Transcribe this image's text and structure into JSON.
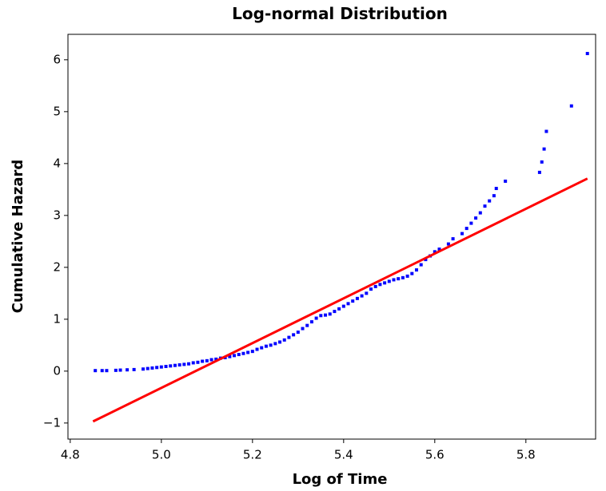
{
  "chart_data": {
    "type": "scatter",
    "title": "Log-normal Distribution",
    "x_label": "Log of Time",
    "y_label": "Cumulative Hazard",
    "xlim": [
      4.795,
      5.953
    ],
    "ylim": [
      -1.31,
      6.49
    ],
    "xticks": [
      4.8,
      {
        "value": 5.0,
        "label": "5.0"
      },
      5.2,
      5.4,
      5.6,
      5.8
    ],
    "yticks": [
      {
        "value": -1,
        "label": "−1"
      },
      0,
      1,
      2,
      3,
      4,
      5,
      6
    ],
    "grid": false,
    "series": [
      {
        "type": "scatter",
        "color": "#0000ff",
        "x": [
          4.855,
          4.87,
          4.88,
          4.9,
          4.91,
          4.925,
          4.94,
          4.96,
          4.97,
          4.98,
          4.99,
          5.0,
          5.01,
          5.02,
          5.03,
          5.04,
          5.05,
          5.06,
          5.07,
          5.08,
          5.09,
          5.1,
          5.11,
          5.12,
          5.13,
          5.14,
          5.15,
          5.16,
          5.17,
          5.18,
          5.19,
          5.2,
          5.21,
          5.22,
          5.23,
          5.24,
          5.25,
          5.26,
          5.27,
          5.28,
          5.29,
          5.3,
          5.31,
          5.32,
          5.33,
          5.34,
          5.35,
          5.36,
          5.37,
          5.38,
          5.39,
          5.4,
          5.41,
          5.42,
          5.43,
          5.44,
          5.45,
          5.46,
          5.47,
          5.48,
          5.49,
          5.5,
          5.51,
          5.52,
          5.53,
          5.54,
          5.55,
          5.56,
          5.57,
          5.58,
          5.59,
          5.6,
          5.61,
          5.63,
          5.64,
          5.66,
          5.67,
          5.68,
          5.69,
          5.7,
          5.71,
          5.72,
          5.73,
          5.735,
          5.755,
          5.83,
          5.835,
          5.84,
          5.845,
          5.9,
          5.935
        ],
        "values": [
          0.01,
          0.01,
          0.01,
          0.015,
          0.02,
          0.025,
          0.03,
          0.04,
          0.05,
          0.06,
          0.07,
          0.08,
          0.09,
          0.1,
          0.11,
          0.12,
          0.13,
          0.14,
          0.16,
          0.17,
          0.19,
          0.2,
          0.22,
          0.23,
          0.25,
          0.26,
          0.28,
          0.3,
          0.32,
          0.34,
          0.36,
          0.38,
          0.42,
          0.45,
          0.48,
          0.5,
          0.53,
          0.56,
          0.6,
          0.65,
          0.7,
          0.75,
          0.82,
          0.88,
          0.95,
          1.02,
          1.07,
          1.08,
          1.1,
          1.15,
          1.2,
          1.25,
          1.3,
          1.35,
          1.4,
          1.45,
          1.5,
          1.58,
          1.63,
          1.67,
          1.7,
          1.73,
          1.76,
          1.78,
          1.8,
          1.83,
          1.88,
          1.95,
          2.05,
          2.15,
          2.22,
          2.3,
          2.35,
          2.45,
          2.55,
          2.65,
          2.75,
          2.85,
          2.95,
          3.05,
          3.18,
          3.28,
          3.38,
          3.52,
          3.66,
          3.83,
          4.03,
          4.28,
          4.62,
          5.11,
          6.12
        ]
      },
      {
        "type": "line",
        "color": "#ff0000",
        "x": [
          4.85,
          5.935
        ],
        "values": [
          -0.97,
          3.71
        ]
      }
    ]
  }
}
